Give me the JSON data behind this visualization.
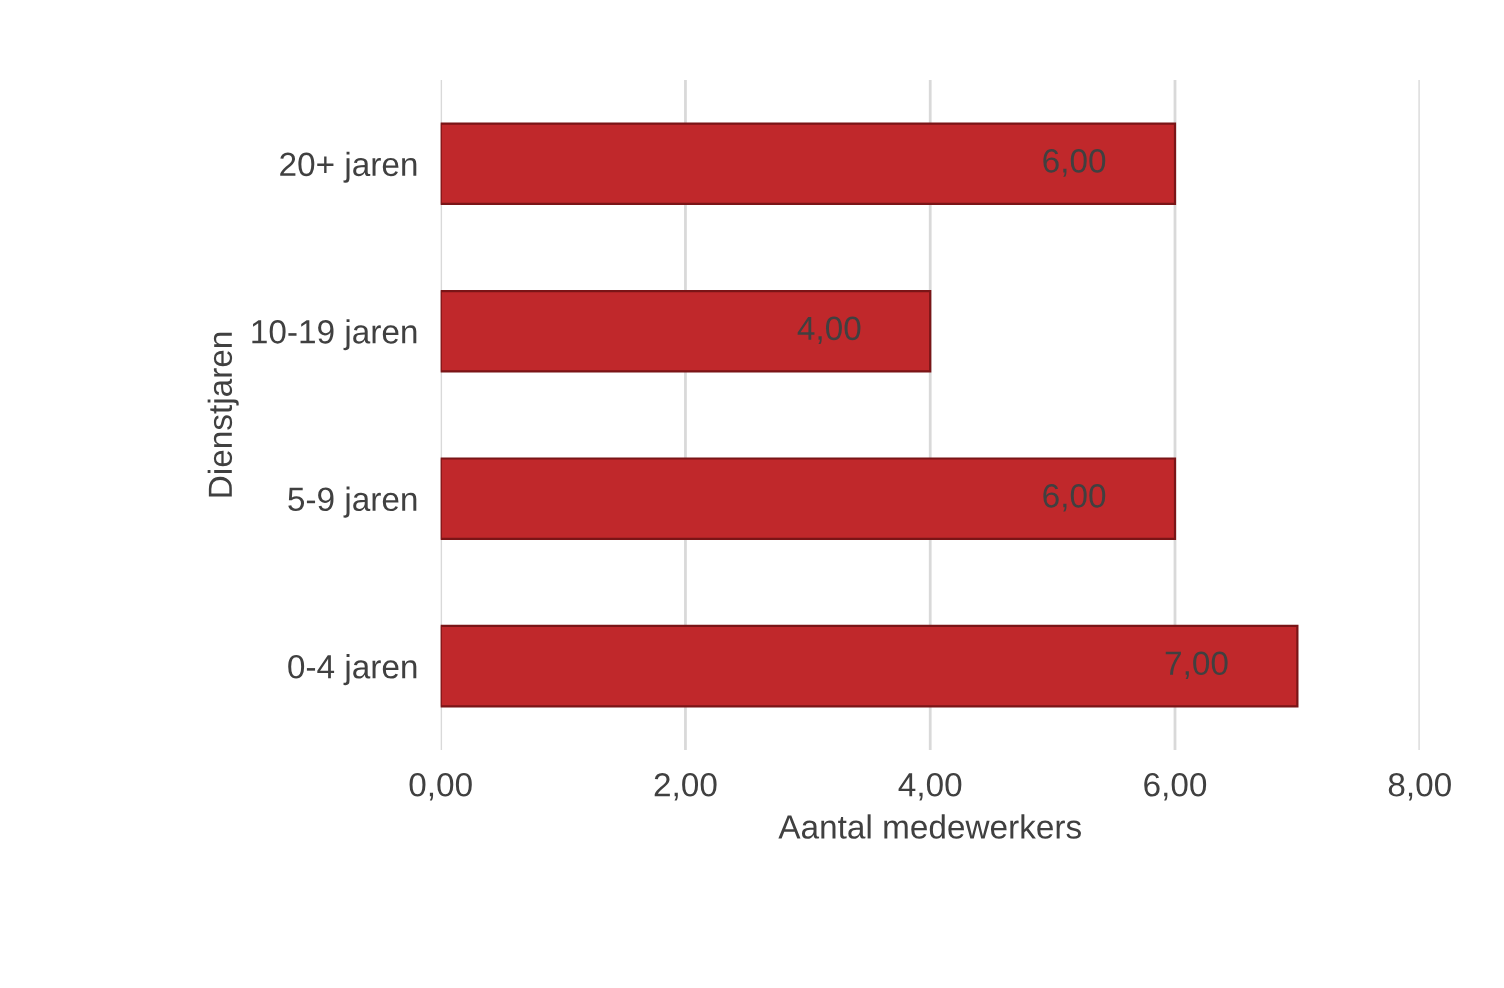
{
  "chart_data": {
    "type": "bar",
    "orientation": "horizontal",
    "xlabel": "Aantal medewerkers",
    "ylabel": "Dienstjaren",
    "categories": [
      "20+ jaren",
      "10-19 jaren",
      "5-9 jaren",
      "0-4 jaren"
    ],
    "values": [
      6,
      4,
      6,
      7
    ],
    "color": "#c0282b",
    "value_labels": [
      "6,00",
      "4,00",
      "6,00",
      "7,00"
    ],
    "xlim": [
      0,
      8
    ],
    "xticks": [
      {
        "value": 0,
        "label": "0,00"
      },
      {
        "value": 2,
        "label": "2,00"
      },
      {
        "value": 4,
        "label": "4,00"
      },
      {
        "value": 6,
        "label": "6,00"
      },
      {
        "value": 8,
        "label": "8,00"
      }
    ],
    "grid": "x",
    "legend": false
  }
}
